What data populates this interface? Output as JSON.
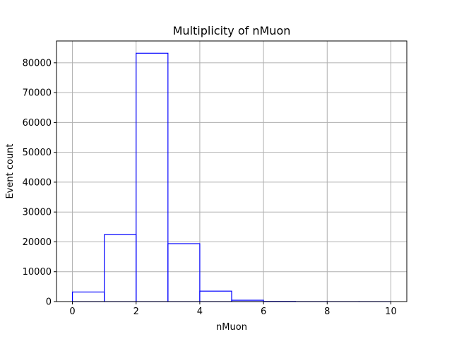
{
  "chart_data": {
    "type": "bar",
    "title": "Multiplicity of nMuon",
    "xlabel": "nMuon",
    "ylabel": "Event count",
    "xlim": [
      -0.5,
      10.5
    ],
    "ylim": [
      0,
      87300
    ],
    "xticks": [
      0,
      2,
      4,
      6,
      8,
      10
    ],
    "yticks": [
      0,
      10000,
      20000,
      30000,
      40000,
      50000,
      60000,
      70000,
      80000
    ],
    "bin_edges": [
      0,
      1,
      2,
      3,
      4,
      5,
      6,
      7,
      8,
      9,
      10
    ],
    "values": [
      3200,
      22400,
      83200,
      19400,
      3500,
      450,
      60,
      10,
      2,
      1
    ],
    "histtype": "step",
    "line_color": "#0000ff",
    "grid": true,
    "grid_color": "#b0b0b0"
  }
}
